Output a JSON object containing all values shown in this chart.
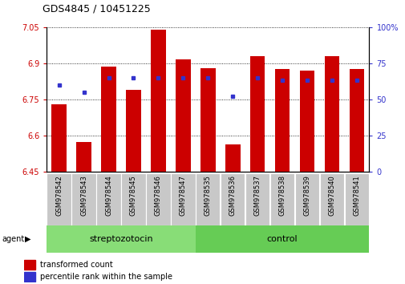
{
  "title": "GDS4845 / 10451225",
  "samples": [
    "GSM978542",
    "GSM978543",
    "GSM978544",
    "GSM978545",
    "GSM978546",
    "GSM978547",
    "GSM978535",
    "GSM978536",
    "GSM978537",
    "GSM978538",
    "GSM978539",
    "GSM978540",
    "GSM978541"
  ],
  "red_values": [
    6.73,
    6.575,
    6.885,
    6.79,
    7.04,
    6.915,
    6.88,
    6.565,
    6.93,
    6.875,
    6.87,
    6.93,
    6.875
  ],
  "blue_values": [
    60,
    55,
    65,
    65,
    65,
    65,
    65,
    52,
    65,
    63,
    63,
    63,
    63
  ],
  "ylim_left": [
    6.45,
    7.05
  ],
  "ylim_right": [
    0,
    100
  ],
  "yticks_left": [
    6.45,
    6.6,
    6.75,
    6.9,
    7.05
  ],
  "yticks_right": [
    0,
    25,
    50,
    75,
    100
  ],
  "ytick_labels_left": [
    "6.45",
    "6.6",
    "6.75",
    "6.9",
    "7.05"
  ],
  "ytick_labels_right": [
    "0",
    "25",
    "50",
    "75",
    "100%"
  ],
  "group1_label": "streptozotocin",
  "group2_label": "control",
  "agent_label": "agent",
  "legend1": "transformed count",
  "legend2": "percentile rank within the sample",
  "bar_color": "#cc0000",
  "blue_color": "#3333cc",
  "tick_bg": "#c8c8c8",
  "group1_bg": "#88dd77",
  "group2_bg": "#66cc55",
  "group1_count": 6,
  "group2_count": 7,
  "bar_width": 0.6
}
